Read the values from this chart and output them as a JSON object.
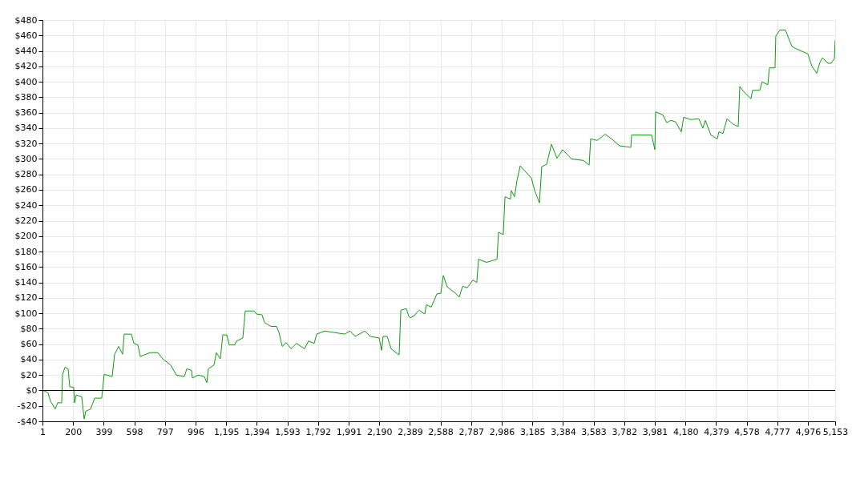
{
  "chart_data": {
    "type": "line",
    "x": [
      1,
      6,
      37,
      53,
      84,
      100,
      126,
      131,
      147,
      168,
      178,
      204,
      209,
      220,
      256,
      272,
      282,
      314,
      340,
      386,
      402,
      454,
      470,
      496,
      522,
      532,
      579,
      595,
      621,
      637,
      699,
      751,
      782,
      834,
      871,
      923,
      939,
      970,
      975,
      1012,
      1053,
      1069,
      1079,
      1116,
      1131,
      1157,
      1173,
      1199,
      1215,
      1251,
      1262,
      1303,
      1319,
      1376,
      1392,
      1428,
      1444,
      1486,
      1522,
      1538,
      1559,
      1585,
      1616,
      1652,
      1704,
      1730,
      1767,
      1783,
      1835,
      1965,
      2001,
      2033,
      2095,
      2132,
      2189,
      2205,
      2215,
      2241,
      2267,
      2319,
      2330,
      2366,
      2382,
      2392,
      2418,
      2434,
      2449,
      2470,
      2486,
      2496,
      2528,
      2564,
      2590,
      2606,
      2632,
      2679,
      2710,
      2731,
      2762,
      2798,
      2824,
      2835,
      2887,
      2955,
      2965,
      2996,
      3007,
      3043,
      3048,
      3069,
      3085,
      3106,
      3179,
      3200,
      3231,
      3246,
      3278,
      3309,
      3345,
      3382,
      3439,
      3517,
      3554,
      3564,
      3606,
      3658,
      3700,
      3752,
      3825,
      3830,
      3960,
      3981,
      3986,
      4033,
      4059,
      4085,
      4116,
      4153,
      4168,
      4215,
      4267,
      4293,
      4309,
      4345,
      4387,
      4397,
      4424,
      4450,
      4491,
      4523,
      4533,
      4559,
      4606,
      4616,
      4663,
      4679,
      4715,
      4726,
      4762,
      4767,
      4793,
      4830,
      4871,
      4897,
      4976,
      5002,
      5033,
      5054,
      5070,
      5106,
      5127,
      5148,
      5153
    ],
    "series": [
      {
        "color": "#119911",
        "values": [
          2,
          0,
          -3,
          -14,
          -24,
          -16,
          -16,
          20,
          30,
          28,
          5,
          4,
          -16,
          -6,
          -8,
          -37,
          -27,
          -24,
          -10,
          -10,
          21,
          18,
          47,
          57,
          47,
          73,
          73,
          61,
          59,
          44,
          49,
          49,
          41,
          33,
          20,
          18,
          28,
          26,
          16,
          20,
          18,
          10,
          28,
          33,
          49,
          41,
          72,
          72,
          59,
          59,
          64,
          68,
          103,
          103,
          99,
          98,
          88,
          83,
          83,
          75,
          57,
          62,
          54,
          61,
          54,
          64,
          61,
          73,
          77,
          73,
          77,
          70,
          77,
          70,
          68,
          52,
          70,
          70,
          54,
          46,
          104,
          106,
          96,
          94,
          97,
          101,
          104,
          101,
          99,
          111,
          108,
          125,
          126,
          149,
          134,
          127,
          121,
          135,
          133,
          143,
          140,
          170,
          166,
          170,
          205,
          202,
          251,
          248,
          259,
          251,
          272,
          291,
          275,
          259,
          243,
          290,
          293,
          319,
          301,
          312,
          300,
          298,
          292,
          326,
          324,
          332,
          326,
          317,
          315,
          331,
          331,
          312,
          361,
          357,
          347,
          350,
          348,
          335,
          354,
          351,
          352,
          340,
          350,
          331,
          326,
          335,
          333,
          352,
          345,
          342,
          394,
          387,
          378,
          389,
          389,
          400,
          396,
          418,
          418,
          459,
          467,
          467,
          446,
          443,
          436,
          420,
          411,
          425,
          431,
          424,
          424,
          430,
          454
        ]
      }
    ],
    "xlim": [
      1,
      5153
    ],
    "xticks": [
      1,
      200,
      399,
      598,
      797,
      996,
      {
        "value": 1195,
        "label": "1,195"
      },
      {
        "value": 1394,
        "label": "1,394"
      },
      {
        "value": 1593,
        "label": "1,593"
      },
      {
        "value": 1792,
        "label": "1,792"
      },
      {
        "value": 1991,
        "label": "1,991"
      },
      {
        "value": 2190,
        "label": "2,190"
      },
      {
        "value": 2389,
        "label": "2,389"
      },
      {
        "value": 2588,
        "label": "2,588"
      },
      {
        "value": 2787,
        "label": "2,787"
      },
      {
        "value": 2986,
        "label": "2,986"
      },
      {
        "value": 3185,
        "label": "3,185"
      },
      {
        "value": 3384,
        "label": "3,384"
      },
      {
        "value": 3583,
        "label": "3,583"
      },
      {
        "value": 3782,
        "label": "3,782"
      },
      {
        "value": 3981,
        "label": "3,981"
      },
      {
        "value": 4180,
        "label": "4,180"
      },
      {
        "value": 4379,
        "label": "4,379"
      },
      {
        "value": 4578,
        "label": "4,578"
      },
      {
        "value": 4777,
        "label": "4,777"
      },
      {
        "value": 4976,
        "label": "4,976"
      },
      {
        "value": 5153,
        "label": "5,153"
      }
    ],
    "ylim": [
      -40,
      480
    ],
    "yticks": [
      {
        "value": -40,
        "label": "-$40"
      },
      {
        "value": -20,
        "label": "-$20"
      },
      {
        "value": 0,
        "label": "$0"
      },
      {
        "value": 20,
        "label": "$20"
      },
      {
        "value": 40,
        "label": "$40"
      },
      {
        "value": 60,
        "label": "$60"
      },
      {
        "value": 80,
        "label": "$80"
      },
      {
        "value": 100,
        "label": "$100"
      },
      {
        "value": 120,
        "label": "$120"
      },
      {
        "value": 140,
        "label": "$140"
      },
      {
        "value": 160,
        "label": "$160"
      },
      {
        "value": 180,
        "label": "$180"
      },
      {
        "value": 200,
        "label": "$200"
      },
      {
        "value": 220,
        "label": "$220"
      },
      {
        "value": 240,
        "label": "$240"
      },
      {
        "value": 260,
        "label": "$260"
      },
      {
        "value": 280,
        "label": "$280"
      },
      {
        "value": 300,
        "label": "$300"
      },
      {
        "value": 320,
        "label": "$320"
      },
      {
        "value": 340,
        "label": "$340"
      },
      {
        "value": 360,
        "label": "$360"
      },
      {
        "value": 380,
        "label": "$380"
      },
      {
        "value": 400,
        "label": "$400"
      },
      {
        "value": 420,
        "label": "$420"
      },
      {
        "value": 440,
        "label": "$440"
      },
      {
        "value": 460,
        "label": "$460"
      },
      {
        "value": 480,
        "label": "$480"
      }
    ],
    "ref_lines": [
      {
        "axis": "y",
        "value": 0,
        "color": "#000000"
      }
    ],
    "grid": true,
    "line_style": "solid",
    "marker": "none"
  }
}
